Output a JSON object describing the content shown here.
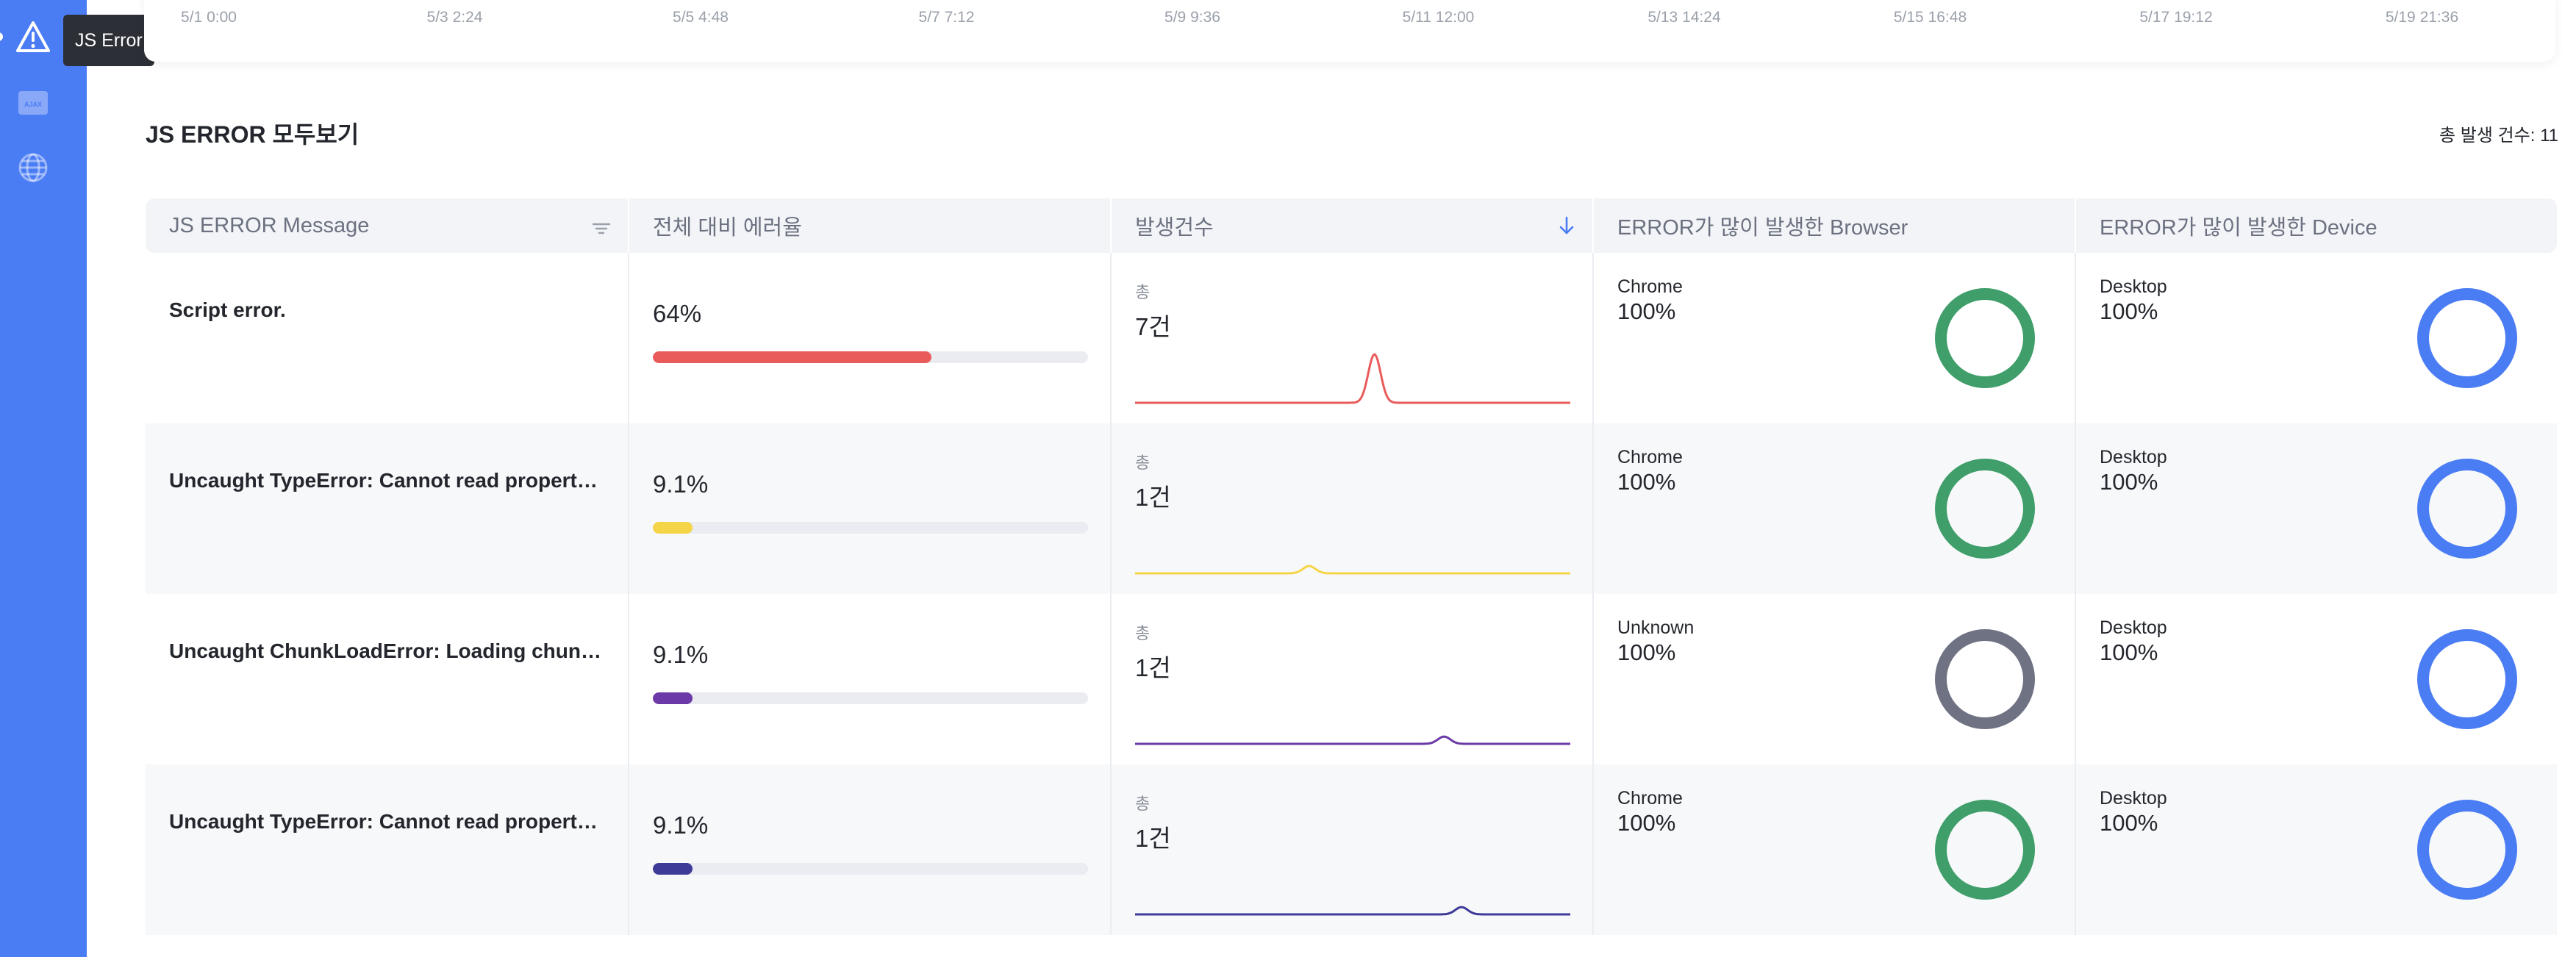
{
  "sidebar": {
    "tooltip": "JS Error",
    "icons": [
      "warning-icon",
      "ajax-icon",
      "globe-icon"
    ],
    "ajax_icon_text": "AJAX",
    "colors": {
      "bg": "#4a7cf4"
    }
  },
  "timeline": {
    "ticks": [
      "5/1 0:00",
      "5/3 2:24",
      "5/5 4:48",
      "5/7 7:12",
      "5/9 9:36",
      "5/11 12:00",
      "5/13 14:24",
      "5/15 16:48",
      "5/17 19:12",
      "5/19 21:36"
    ]
  },
  "section": {
    "title": "JS ERROR 모두보기",
    "total_count": "총 발생 건수: 11"
  },
  "table": {
    "columns": [
      "JS ERROR Message",
      "전체 대비 에러율",
      "발생건수",
      "ERROR가 많이 발생한 Browser",
      "ERROR가 많이 발생한 Device"
    ],
    "rows": [
      {
        "message": "Script error.",
        "rate": "64%",
        "rate_value": 0.64,
        "bar_color": "#e95b5b",
        "count_label": "총",
        "count": "7건",
        "spark_color": "#e95b5b",
        "spark_peak": 0.55,
        "spark_height": 1.0,
        "browser": "Chrome",
        "browser_pct": "100%",
        "browser_color": "#3f9e6a",
        "device": "Desktop",
        "device_pct": "100%",
        "device_color": "#4a7cf4"
      },
      {
        "message": "Uncaught TypeError: Cannot read properties of undefined",
        "rate": "9.1%",
        "rate_value": 0.091,
        "bar_color": "#f5d547",
        "count_label": "총",
        "count": "1건",
        "spark_color": "#f5d547",
        "spark_peak": 0.4,
        "spark_height": 0.15,
        "browser": "Chrome",
        "browser_pct": "100%",
        "browser_color": "#3f9e6a",
        "device": "Desktop",
        "device_pct": "100%",
        "device_color": "#4a7cf4"
      },
      {
        "message": "Uncaught ChunkLoadError: Loading chunk failed",
        "rate": "9.1%",
        "rate_value": 0.091,
        "bar_color": "#6b3aa8",
        "count_label": "총",
        "count": "1건",
        "spark_color": "#6b3aa8",
        "spark_peak": 0.71,
        "spark_height": 0.15,
        "browser": "Unknown",
        "browser_pct": "100%",
        "browser_color": "#6f7283",
        "device": "Desktop",
        "device_pct": "100%",
        "device_color": "#4a7cf4"
      },
      {
        "message": "Uncaught TypeError: Cannot read properties of null",
        "rate": "9.1%",
        "rate_value": 0.091,
        "bar_color": "#3e3a98",
        "count_label": "총",
        "count": "1건",
        "spark_color": "#3e3a98",
        "spark_peak": 0.75,
        "spark_height": 0.15,
        "browser": "Chrome",
        "browser_pct": "100%",
        "browser_color": "#3f9e6a",
        "device": "Desktop",
        "device_pct": "100%",
        "device_color": "#4a7cf4"
      }
    ]
  }
}
